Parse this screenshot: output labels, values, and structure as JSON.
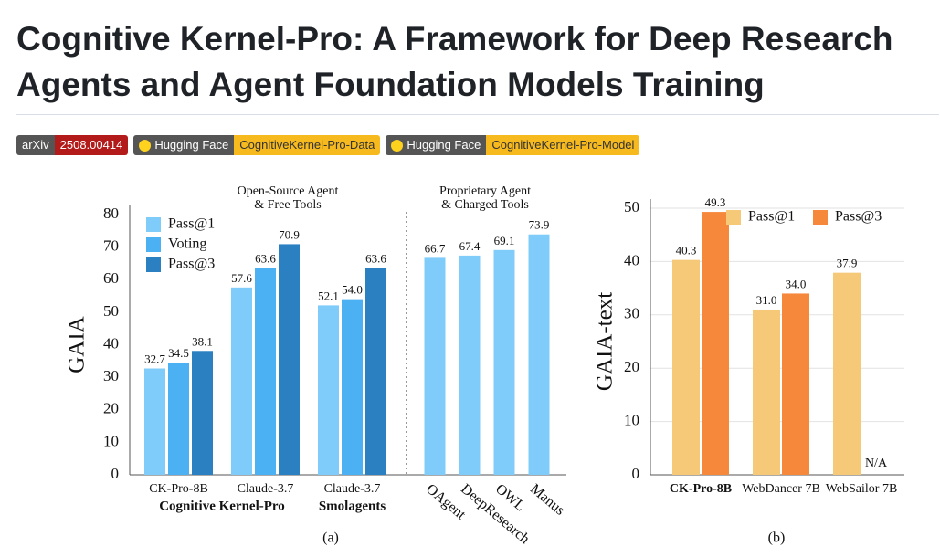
{
  "header": {
    "title": "Cognitive Kernel-Pro: A Framework for Deep Research Agents and Agent Foundation Models Training"
  },
  "badges": [
    {
      "label": "arXiv",
      "value": "2508.00414",
      "color": "#b31b1b"
    },
    {
      "label": "Hugging Face",
      "value": "CognitiveKernel-Pro-Data",
      "color": "#f6b91e"
    },
    {
      "label": "Hugging Face",
      "value": "CognitiveKernel-Pro-Model",
      "color": "#f6b91e"
    }
  ],
  "chart_data": [
    {
      "type": "bar",
      "caption": "(a)",
      "ylabel": "GAIA",
      "top_labels": [
        {
          "lines": [
            "Open-Source Agent",
            "& Free Tools"
          ]
        },
        {
          "lines": [
            "Proprietary Agent",
            "& Charged Tools"
          ]
        }
      ],
      "categories": [
        "CK-Pro-8B",
        "Claude-3.7",
        "Claude-3.7",
        "OAgent",
        "DeepResearch",
        "OWL",
        "Manus"
      ],
      "category_groups": [
        "Cognitive Kernel-Pro",
        "Smolagents"
      ],
      "series": [
        {
          "name": "Pass@1",
          "color": "#7fccfb",
          "values": [
            32.7,
            57.6,
            52.1,
            66.7,
            67.4,
            69.1,
            73.9
          ],
          "value_labels": [
            "32.7",
            "57.6",
            "52.1",
            "66.7",
            "67.4",
            "69.1",
            "73.9"
          ]
        },
        {
          "name": "Voting",
          "color": "#4cb1f2",
          "values": [
            34.5,
            63.6,
            54.0,
            null,
            null,
            null,
            null
          ],
          "value_labels": [
            "34.5",
            "63.6",
            "54.0",
            null,
            null,
            null,
            null
          ]
        },
        {
          "name": "Pass@3",
          "color": "#2b80c2",
          "values": [
            38.1,
            70.9,
            63.6,
            null,
            null,
            null,
            null
          ],
          "value_labels": [
            "38.1",
            "70.9",
            "63.6",
            null,
            null,
            null,
            null
          ]
        }
      ],
      "ylim": [
        0,
        80
      ],
      "yticks": [
        0,
        10,
        20,
        30,
        40,
        50,
        60,
        70,
        80
      ],
      "grid": false,
      "legend": "upper left"
    },
    {
      "type": "bar",
      "caption": "(b)",
      "ylabel": "GAIA-text",
      "categories": [
        "CK-Pro-8B",
        "WebDancer 7B",
        "WebSailor 7B"
      ],
      "series": [
        {
          "name": "Pass@1",
          "color": "#f5c978",
          "values": [
            40.3,
            31.0,
            37.9
          ],
          "value_labels": [
            "40.3",
            "31.0",
            "37.9"
          ]
        },
        {
          "name": "Pass@3",
          "color": "#f5883a",
          "values": [
            49.3,
            34.0,
            null
          ],
          "value_labels": [
            "49.3",
            "34.0",
            null
          ]
        }
      ],
      "na_label": "N/A",
      "ylim": [
        0,
        50
      ],
      "yticks": [
        0,
        10,
        20,
        30,
        40,
        50
      ],
      "grid": true,
      "legend": "upper center"
    }
  ]
}
